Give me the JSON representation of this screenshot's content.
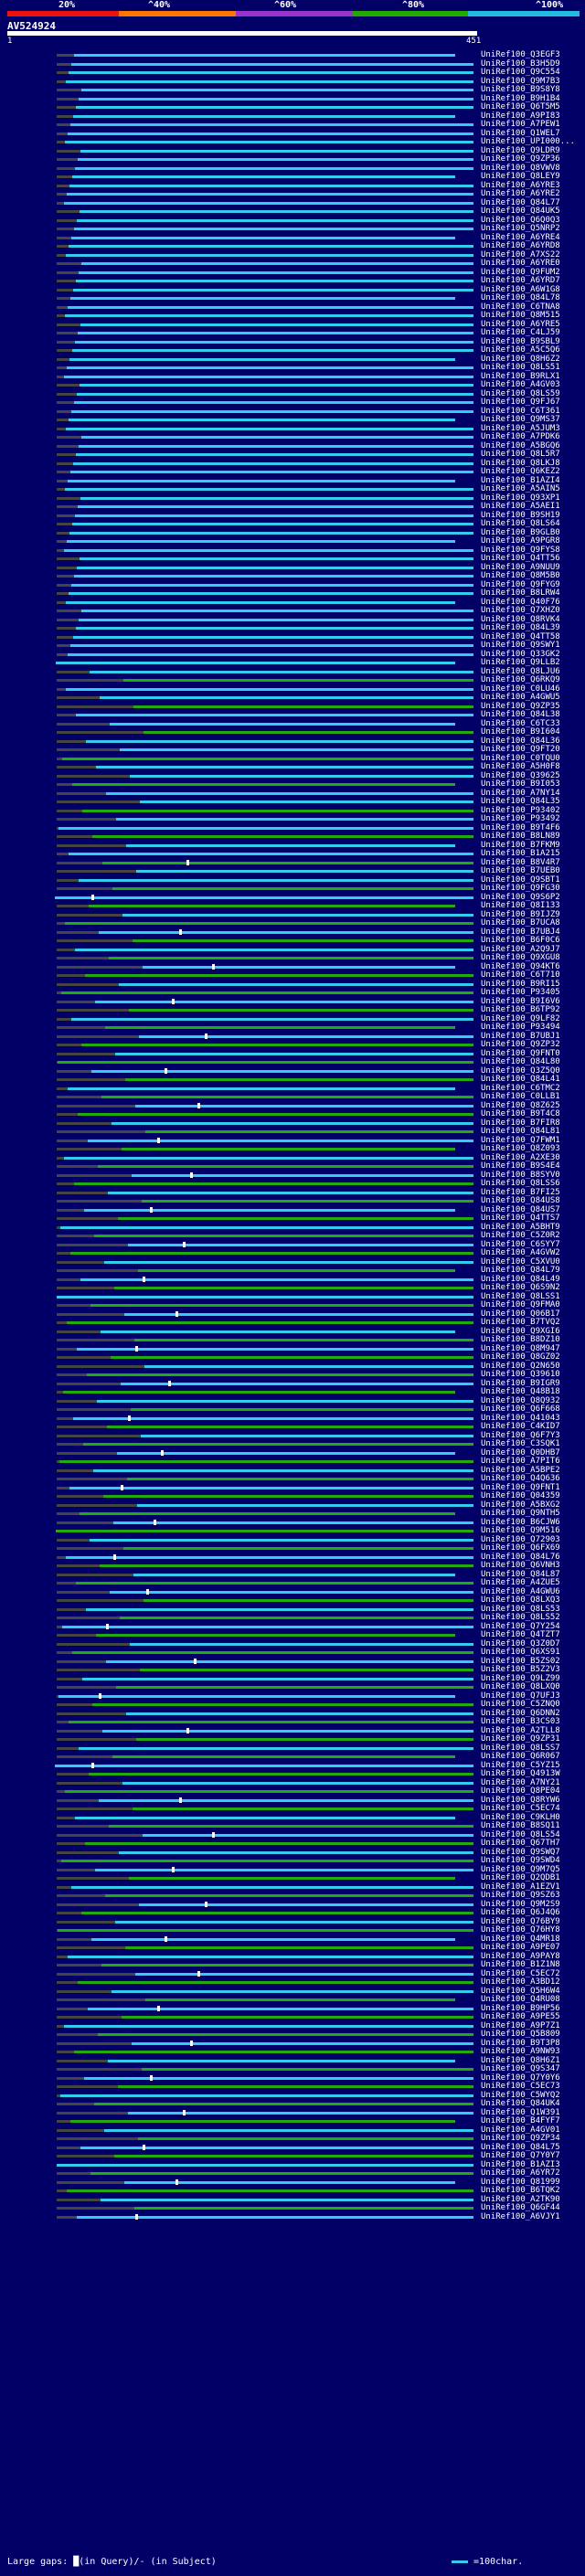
{
  "scale": {
    "ticks": [
      "20%",
      "^40%",
      "^60%",
      "^80%",
      "^100%"
    ],
    "band_colors": [
      "#ee1111",
      "#ff7700",
      "#9933cc",
      "#22aa00",
      "#22bbdd"
    ]
  },
  "query": {
    "id": "AV524924",
    "start": "1",
    "end": "451"
  },
  "colors": {
    "cyan": "#33ccee",
    "green": "#22aa11",
    "dark": "#444444",
    "gap": "#ffffff"
  },
  "hits": [
    "UniRef100_Q3EGF3",
    "UniRef100_B3H5D9",
    "UniRef100_Q9C554",
    "UniRef100_Q9M7B3",
    "UniRef100_B9S8Y8",
    "UniRef100_B9H1B4",
    "UniRef100_Q6T5M5",
    "UniRef100_A9PI83",
    "UniRef100_A7PEW1",
    "UniRef100_Q1WEL7",
    "UniRef100_UPI000...",
    "UniRef100_Q9LDR9",
    "UniRef100_Q9ZP36",
    "UniRef100_Q8VWV8",
    "UniRef100_Q8LEY9",
    "UniRef100_A6YRE3",
    "UniRef100_A6YRE2",
    "UniRef100_Q84L77",
    "UniRef100_Q84UK5",
    "UniRef100_Q6Q0Q3",
    "UniRef100_Q5NRP2",
    "UniRef100_A6YRE4",
    "UniRef100_A6YRD8",
    "UniRef100_A7XS22",
    "UniRef100_A6YRE0",
    "UniRef100_Q9FUM2",
    "UniRef100_A6YRD7",
    "UniRef100_A6W1G8",
    "UniRef100_Q84L78",
    "UniRef100_C6TNA8",
    "UniRef100_Q8M515",
    "UniRef100_A6YRE5",
    "UniRef100_C4LJ59",
    "UniRef100_B9SBL9",
    "UniRef100_A5C5Q6",
    "UniRef100_Q8H6Z2",
    "UniRef100_Q8LS51",
    "UniRef100_B9RLX1",
    "UniRef100_A4GV03",
    "UniRef100_Q8LS59",
    "UniRef100_Q9FJ67",
    "UniRef100_C6T361",
    "UniRef100_Q9MS37",
    "UniRef100_A5JUM3",
    "UniRef100_A7PDK6",
    "UniRef100_A5BGQ6",
    "UniRef100_Q8L5R7",
    "UniRef100_Q8LKJ8",
    "UniRef100_Q6KEZ2",
    "UniRef100_B1AZI4",
    "UniRef100_A5AIN5",
    "UniRef100_Q93XP1",
    "UniRef100_A5AEI1",
    "UniRef100_B9SH19",
    "UniRef100_Q8LS64",
    "UniRef100_B9GLB0",
    "UniRef100_A9PGR8",
    "UniRef100_Q9FYS8",
    "UniRef100_Q4TT56",
    "UniRef100_A9NUU9",
    "UniRef100_Q8M5B0",
    "UniRef100_Q9FYG9",
    "UniRef100_B8LRW4",
    "UniRef100_Q40F76",
    "UniRef100_Q7XHZ0",
    "UniRef100_Q8RVK4",
    "UniRef100_Q84L39",
    "UniRef100_Q4TT58",
    "UniRef100_Q9SWY1",
    "UniRef100_Q33GK2",
    "UniRef100_Q9LLB2",
    "UniRef100_Q8LJU6",
    "UniRef100_Q6RKQ9",
    "UniRef100_C0LU46",
    "UniRef100_A4GWU5",
    "UniRef100_Q9ZP35",
    "UniRef100_Q84L38",
    "UniRef100_C6TC33",
    "UniRef100_B9I604",
    "UniRef100_Q84L36",
    "UniRef100_Q9FT20",
    "UniRef100_C0TQU0",
    "UniRef100_A5H0F8",
    "UniRef100_Q39625",
    "UniRef100_B9I053",
    "UniRef100_A7NY14",
    "UniRef100_Q84L35",
    "UniRef100_P93402",
    "UniRef100_P93492",
    "UniRef100_B9T4F6",
    "UniRef100_B8LN89",
    "UniRef100_B7FKM9",
    "UniRef100_B1A215",
    "UniRef100_B8V4R7",
    "UniRef100_B7UEB0",
    "UniRef100_Q9SBT1",
    "UniRef100_Q9FG30",
    "UniRef100_Q9S6P2",
    "UniRef100_Q8I133",
    "UniRef100_B9IJZ9",
    "UniRef100_B7UCA8",
    "UniRef100_B7UBJ4",
    "UniRef100_B6F0C6",
    "UniRef100_A2Q9J7",
    "UniRef100_Q9XGU8",
    "UniRef100_Q94KT6",
    "UniRef100_C6T710",
    "UniRef100_B9RI15",
    "UniRef100_P93405",
    "UniRef100_B9I6V6",
    "UniRef100_B6TP92",
    "UniRef100_Q9LF82",
    "UniRef100_P93494",
    "UniRef100_B7UBJ1",
    "UniRef100_Q9ZP32",
    "UniRef100_Q9FNT0",
    "UniRef100_Q84L80",
    "UniRef100_Q3Z5Q0",
    "UniRef100_Q84L41",
    "UniRef100_C6TMC2",
    "UniRef100_C0LLB1",
    "UniRef100_Q8Z625",
    "UniRef100_B9T4C8",
    "UniRef100_B7FIR8",
    "UniRef100_Q84L81",
    "UniRef100_Q7FWM1",
    "UniRef100_Q8Z093",
    "UniRef100_A2XE30",
    "UniRef100_B9S4E4",
    "UniRef100_B8SYV0",
    "UniRef100_Q8LSS6",
    "UniRef100_B7FI25",
    "UniRef100_Q84US8",
    "UniRef100_Q84US7",
    "UniRef100_Q4TTS7",
    "UniRef100_A5BHT9",
    "UniRef100_C5Z0R2",
    "UniRef100_C6SYY7",
    "UniRef100_A4GVW2",
    "UniRef100_C5XVU0",
    "UniRef100_Q84L79",
    "UniRef100_Q84L49",
    "UniRef100_Q6S9N2",
    "UniRef100_Q8LSS1",
    "UniRef100_Q9FMA0",
    "UniRef100_Q06B17",
    "UniRef100_B7TVQ2",
    "UniRef100_Q9XGI6",
    "UniRef100_B8DZ10",
    "UniRef100_Q8M947",
    "UniRef100_Q8GZ02",
    "UniRef100_Q2N650",
    "UniRef100_Q39610",
    "UniRef100_B9IGR9",
    "UniRef100_Q48B18",
    "UniRef100_Q8Q932",
    "UniRef100_Q6F668",
    "UniRef100_Q41043",
    "UniRef100_C4KID7",
    "UniRef100_Q6F7Y3",
    "UniRef100_C3SQK1",
    "UniRef100_Q0DHB7",
    "UniRef100_A7PIT6",
    "UniRef100_A5BPE2",
    "UniRef100_Q4Q636",
    "UniRef100_Q9FNT1",
    "UniRef100_Q04359",
    "UniRef100_A5BXG2",
    "UniRef100_Q9NTH5",
    "UniRef100_B6CJW6",
    "UniRef100_Q9M516",
    "UniRef100_Q72903",
    "UniRef100_Q6FX69",
    "UniRef100_Q84L76",
    "UniRef100_Q6VNH3",
    "UniRef100_Q84L87",
    "UniRef100_A4ZUE5",
    "UniRef100_A4GWU6",
    "UniRef100_Q8LXQ3",
    "UniRef100_Q8LS53",
    "UniRef100_Q8LS52",
    "UniRef100_Q7Y254",
    "UniRef100_Q4TZT7",
    "UniRef100_Q3Z0D7",
    "UniRef100_Q6XS91",
    "UniRef100_B5ZS02",
    "UniRef100_B5Z2V3",
    "UniRef100_Q9LZ99",
    "UniRef100_Q8LXQ0",
    "UniRef100_Q7UFJ3",
    "UniRef100_C5ZNQ0",
    "UniRef100_Q6DNN2",
    "UniRef100_B3CS03",
    "UniRef100_A2TLL8",
    "UniRef100_Q9ZP31",
    "UniRef100_Q8LSS7",
    "UniRef100_Q6R067",
    "UniRef100_C5YZ15",
    "UniRef100_Q4913W",
    "UniRef100_A7NY21",
    "UniRef100_Q8PE04",
    "UniRef100_Q8RYW6",
    "UniRef100_C5EC74",
    "UniRef100_C9KLH0",
    "UniRef100_B8SQ11",
    "UniRef100_Q8LS54",
    "UniRef100_Q67TH7",
    "UniRef100_Q9SWQ7",
    "UniRef100_Q9SWD4",
    "UniRef100_Q9M7Q5",
    "UniRef100_Q2QDB1",
    "UniRef100_A1EZV1",
    "UniRef100_Q9SZ63",
    "UniRef100_Q9M2S9",
    "UniRef100_Q6J4Q6",
    "UniRef100_Q76BY9",
    "UniRef100_Q76HY8",
    "UniRef100_Q4MR18",
    "UniRef100_A9PE07",
    "UniRef100_A9PAY8",
    "UniRef100_B1Z1N8",
    "UniRef100_C5EC72",
    "UniRef100_A3BD12",
    "UniRef100_Q5H6W4",
    "UniRef100_Q4RU08",
    "UniRef100_B9HP56",
    "UniRef100_A9PE55",
    "UniRef100_A9P7Z1",
    "UniRef100_Q5B809",
    "UniRef100_B9T3P8",
    "UniRef100_A9NW93",
    "UniRef100_Q8H6Z1",
    "UniRef100_Q9S347",
    "UniRef100_Q7Y0Y6",
    "UniRef100_C5EC73",
    "UniRef100_C5WYQ2",
    "UniRef100_Q84UK4",
    "UniRef100_Q1W391",
    "UniRef100_B4FYF7",
    "UniRef100_A4GV01",
    "UniRef100_Q9ZP34",
    "UniRef100_Q84L75",
    "UniRef100_Q7Y0Y7",
    "UniRef100_B1AZI3",
    "UniRef100_A6YR72",
    "UniRef100_Q81999",
    "UniRef100_B6TQK2",
    "UniRef100_A2TK90",
    "UniRef100_Q6GF44",
    "UniRef100_A6VJY1"
  ],
  "legend": {
    "left": "Large gaps: █(in Query)/- (in Subject)",
    "right": "=100char."
  }
}
